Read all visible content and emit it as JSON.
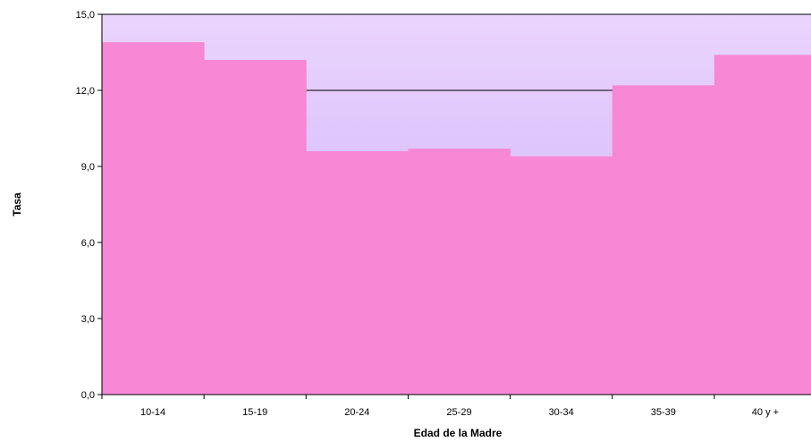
{
  "chart_data": {
    "type": "bar",
    "title": "",
    "xlabel": "Edad de la Madre",
    "ylabel": "Tasa",
    "categories": [
      "10-14",
      "15-19",
      "20-24",
      "25-29",
      "30-34",
      "35-39",
      "40 y +"
    ],
    "values": [
      13.9,
      13.2,
      9.6,
      9.7,
      9.4,
      12.2,
      13.4
    ],
    "ylim": [
      0,
      15
    ],
    "yticks": [
      "0,0",
      "3,0",
      "6,0",
      "9,0",
      "12,0",
      "15,0"
    ],
    "grid": "horizontal",
    "legend": "none",
    "colors": {
      "bar": "#F887D6",
      "plot_background_top": "#EAD5FD",
      "plot_background_bottom": "#C9A9F8",
      "gridline": "#000000",
      "axis": "#000000"
    }
  }
}
